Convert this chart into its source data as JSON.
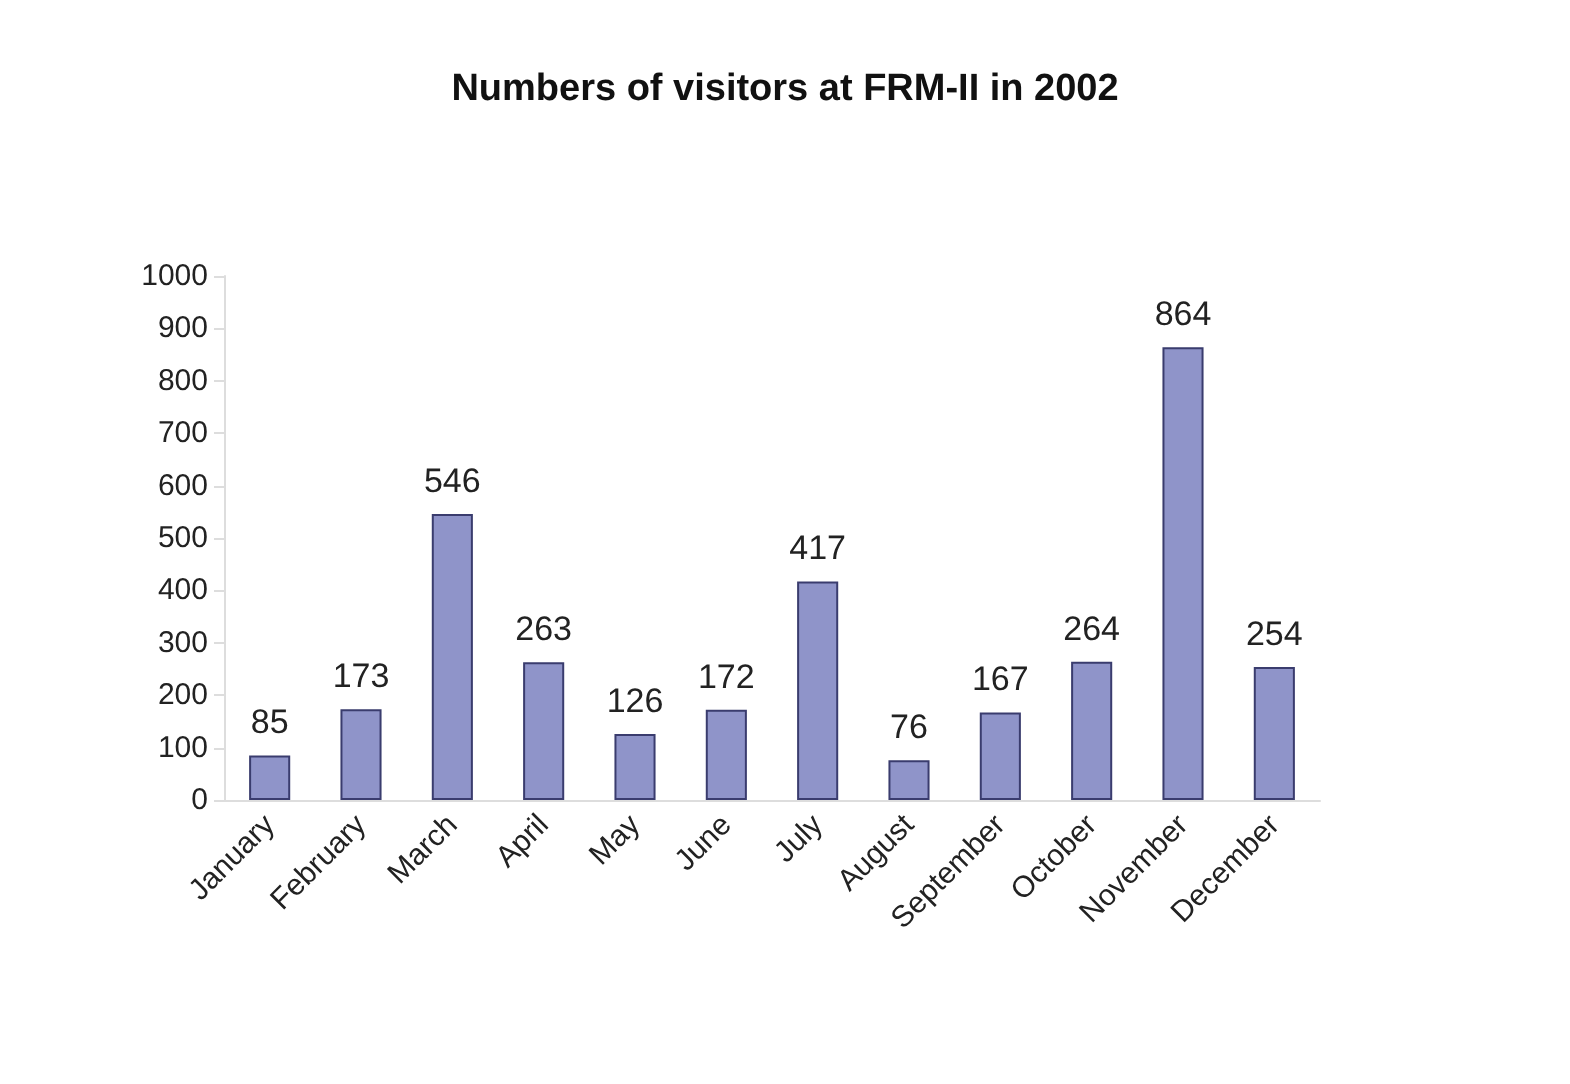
{
  "chart_data": {
    "type": "bar",
    "title": "Numbers of visitors at FRM-II in 2002",
    "categories": [
      "January",
      "February",
      "March",
      "April",
      "May",
      "June",
      "July",
      "August",
      "September",
      "October",
      "November",
      "December"
    ],
    "values": [
      85,
      173,
      546,
      263,
      126,
      172,
      417,
      76,
      167,
      264,
      864,
      254
    ],
    "color": "#8f94c9",
    "ylim": [
      0,
      1000
    ],
    "yticks": [
      0,
      100,
      200,
      300,
      400,
      500,
      600,
      700,
      800,
      900,
      1000
    ],
    "grid": false,
    "data_labels": true
  }
}
